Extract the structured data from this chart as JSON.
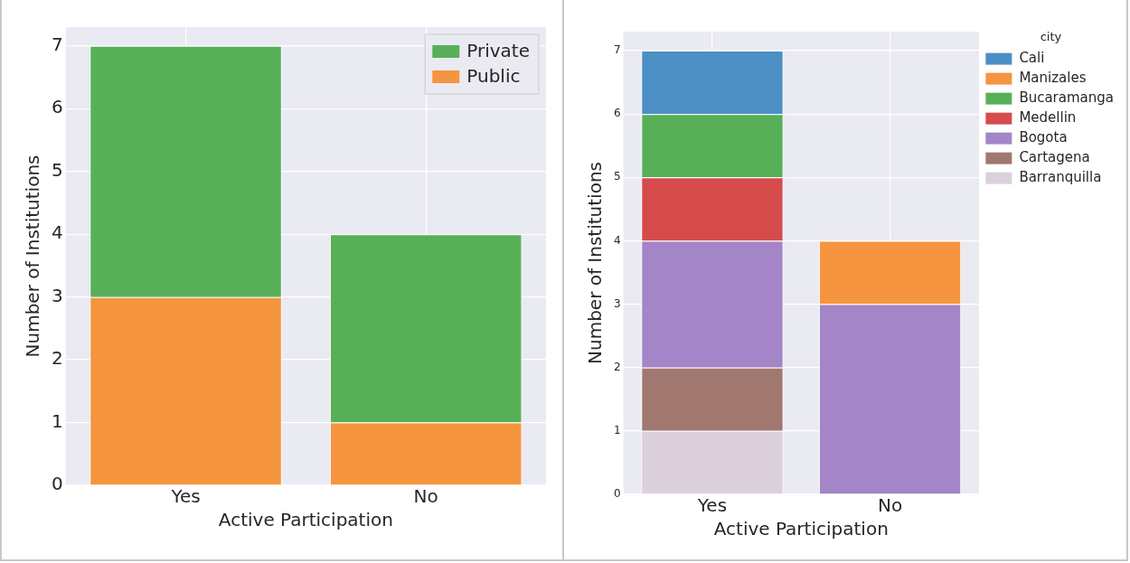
{
  "chart_data": [
    {
      "type": "bar",
      "stacked": true,
      "categories": [
        "Yes",
        "No"
      ],
      "xlabel": "Active Participation",
      "ylabel": "Number of Institutions",
      "ylim": [
        0,
        7.3
      ],
      "yticks": [
        0,
        1,
        2,
        3,
        4,
        5,
        6,
        7
      ],
      "grid": true,
      "legend": "top right",
      "series": [
        {
          "name": "Public",
          "color": "#f5953f",
          "values": [
            3,
            1
          ]
        },
        {
          "name": "Private",
          "color": "#57b058",
          "values": [
            4,
            3
          ]
        }
      ]
    },
    {
      "type": "bar",
      "stacked": true,
      "categories": [
        "Yes",
        "No"
      ],
      "xlabel": "Active Participation",
      "ylabel": "Number of Institutions",
      "ylim": [
        0,
        7.3
      ],
      "yticks": [
        0,
        1,
        2,
        3,
        4,
        5,
        6,
        7
      ],
      "grid": true,
      "legend": "right",
      "legend_title": "city",
      "series": [
        {
          "name": "Barranquilla",
          "color": "#dcd0dc",
          "values": [
            1,
            0
          ]
        },
        {
          "name": "Cartagena",
          "color": "#a07870",
          "values": [
            1,
            0
          ]
        },
        {
          "name": "Bogota",
          "color": "#a385c8",
          "values": [
            2,
            3
          ]
        },
        {
          "name": "Medellin",
          "color": "#d64b4c",
          "values": [
            1,
            0
          ]
        },
        {
          "name": "Bucaramanga",
          "color": "#57b058",
          "values": [
            1,
            0
          ]
        },
        {
          "name": "Manizales",
          "color": "#f5953f",
          "values": [
            0,
            1
          ]
        },
        {
          "name": "Cali",
          "color": "#4c8fc4",
          "values": [
            1,
            0
          ]
        }
      ]
    }
  ]
}
